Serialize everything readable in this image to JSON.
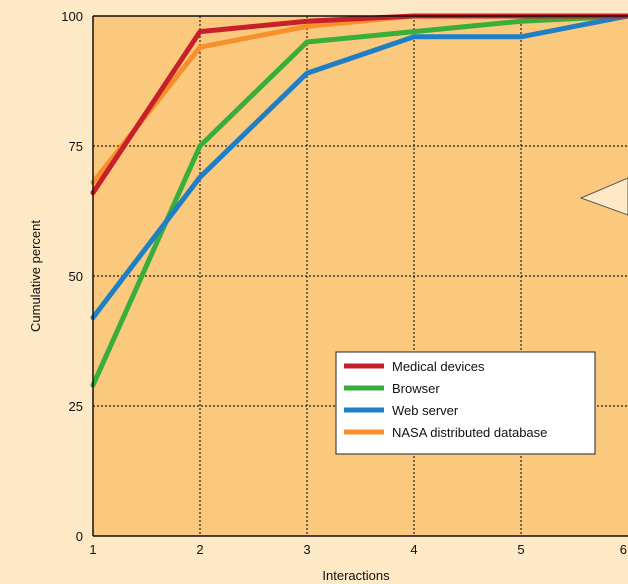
{
  "chart_data": {
    "type": "line",
    "xlabel": "Interactions",
    "ylabel": "Cumulative percent",
    "x": [
      1,
      2,
      3,
      4,
      5,
      6
    ],
    "xlim": [
      1,
      6
    ],
    "ylim": [
      0,
      100
    ],
    "xticks": [
      "1",
      "2",
      "3",
      "4",
      "5",
      "6"
    ],
    "yticks": [
      "0",
      "25",
      "50",
      "75",
      "100"
    ],
    "grid": true,
    "legend_position": "bottom-right",
    "background_color": "#fbc97e",
    "page_color": "#fde9c6",
    "series": [
      {
        "name": "Medical devices",
        "color": "#c8202a",
        "values": [
          66,
          97,
          99,
          100,
          100,
          100
        ]
      },
      {
        "name": "Browser",
        "color": "#3aae3a",
        "values": [
          29,
          75,
          95,
          97,
          99,
          100
        ]
      },
      {
        "name": "Web server",
        "color": "#1f7fc4",
        "values": [
          42,
          69,
          89,
          96,
          96,
          100
        ]
      },
      {
        "name": "NASA distributed database",
        "color": "#f7902a",
        "values": [
          68,
          94,
          98,
          100,
          100,
          100
        ]
      }
    ]
  }
}
